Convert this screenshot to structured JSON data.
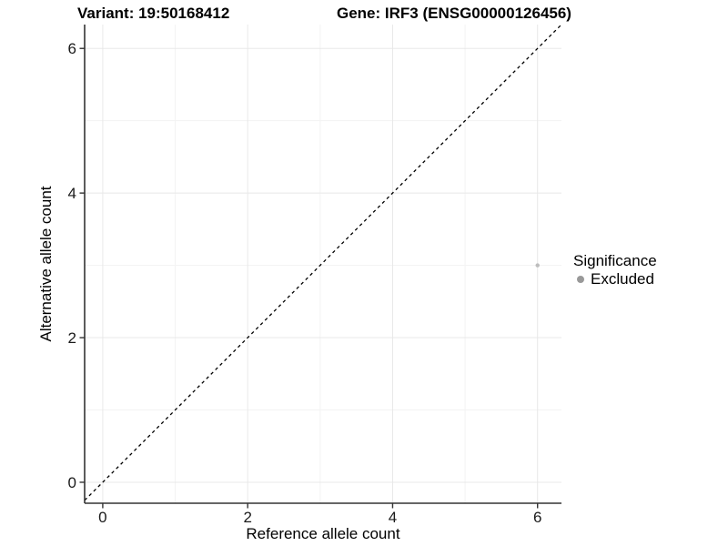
{
  "titles": {
    "left": "Variant: 19:50168412",
    "right": "Gene: IRF3 (ENSG00000126456)"
  },
  "chart_data": {
    "type": "scatter",
    "xlabel": "Reference allele count",
    "ylabel": "Alternative allele count",
    "xlim": [
      -0.25,
      6.33
    ],
    "ylim": [
      -0.29,
      6.33
    ],
    "x_major_ticks": [
      0,
      2,
      4,
      6
    ],
    "y_major_ticks": [
      0,
      2,
      4,
      6
    ],
    "x_minor_gridlines": [
      1,
      3,
      5
    ],
    "y_minor_gridlines": [
      1,
      3,
      5
    ],
    "grid": true,
    "identity_line": {
      "style": "dashed",
      "from": -0.25,
      "to": 6.33,
      "color": "#000000"
    },
    "series": [
      {
        "name": "Excluded",
        "color": "#bdbdbd",
        "points": [
          {
            "x": 6,
            "y": 3
          }
        ]
      }
    ],
    "legend": {
      "title": "Significance",
      "position": "right",
      "items": [
        {
          "label": "Excluded",
          "color": "#999999"
        }
      ]
    }
  },
  "colors": {
    "background": "#ffffff",
    "axis_line": "#333333",
    "tick_mark": "#333333",
    "tick_label": "#1a1a1a",
    "grid_major": "#e8e8e8",
    "grid_minor": "#f3f3f3",
    "point": "#bdbdbd",
    "legend_key": "#999999",
    "dashed_line": "#000000"
  }
}
